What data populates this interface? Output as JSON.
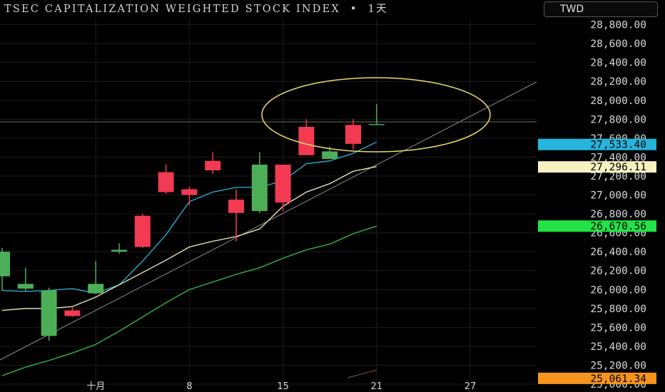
{
  "header": {
    "title": "TSEC CAPITALIZATION WEIGHTED STOCK INDEX",
    "separator": "•",
    "interval": "1天"
  },
  "currency": {
    "label": "TWD"
  },
  "chart_data": {
    "type": "candlestick",
    "title": "TSEC CAPITALIZATION WEIGHTED STOCK INDEX",
    "y_ticks": [
      "25,000.00",
      "25,200.00",
      "25,400.00",
      "25,600.00",
      "25,800.00",
      "26,000.00",
      "26,200.00",
      "26,400.00",
      "26,600.00",
      "26,800.00",
      "27,000.00",
      "27,200.00",
      "27,400.00",
      "27,600.00",
      "27,800.00",
      "28,000.00",
      "28,200.00",
      "28,400.00",
      "28,600.00",
      "28,800.00"
    ],
    "x_ticks": [
      "十月",
      "8",
      "15",
      "21",
      "27"
    ],
    "ylim": [
      24950,
      28950
    ],
    "candles": [
      {
        "o": 26140,
        "h": 26440,
        "l": 25990,
        "c": 26400
      },
      {
        "o": 26010,
        "h": 26230,
        "l": 25980,
        "c": 26060
      },
      {
        "o": 25510,
        "h": 26020,
        "l": 25460,
        "c": 25990
      },
      {
        "o": 25780,
        "h": 25820,
        "l": 25710,
        "c": 25720
      },
      {
        "o": 25960,
        "h": 26300,
        "l": 25960,
        "c": 26060
      },
      {
        "o": 26400,
        "h": 26490,
        "l": 26380,
        "c": 26420
      },
      {
        "o": 26780,
        "h": 26800,
        "l": 26440,
        "c": 26450
      },
      {
        "o": 27240,
        "h": 27320,
        "l": 27010,
        "c": 27030
      },
      {
        "o": 27060,
        "h": 27090,
        "l": 26890,
        "c": 27000
      },
      {
        "o": 27360,
        "h": 27450,
        "l": 27220,
        "c": 27260
      },
      {
        "o": 26950,
        "h": 27060,
        "l": 26510,
        "c": 26810
      },
      {
        "o": 26830,
        "h": 27450,
        "l": 26810,
        "c": 27320
      },
      {
        "o": 27320,
        "h": 27320,
        "l": 26830,
        "c": 26920
      },
      {
        "o": 27720,
        "h": 27800,
        "l": 27420,
        "c": 27420
      },
      {
        "o": 27380,
        "h": 27510,
        "l": 27380,
        "c": 27460
      },
      {
        "o": 27740,
        "h": 27800,
        "l": 27480,
        "c": 27540
      },
      {
        "o": 27750,
        "h": 27960,
        "l": 27750,
        "c": 27750
      }
    ],
    "series": [
      {
        "color": "#29b6d9",
        "values": [
          25990,
          25980,
          25990,
          26010,
          25960,
          26050,
          26300,
          26580,
          26930,
          27030,
          27080,
          27080,
          27150,
          27330,
          27360,
          27440,
          27560
        ]
      },
      {
        "color": "#f5eebe",
        "values": [
          25780,
          25800,
          25800,
          25820,
          25920,
          26050,
          26180,
          26310,
          26450,
          26510,
          26560,
          26640,
          26880,
          27030,
          27120,
          27250,
          27300
        ]
      },
      {
        "color": "#34c24a",
        "values": [
          25090,
          25180,
          25250,
          25330,
          25420,
          25560,
          25710,
          25860,
          26000,
          26080,
          26160,
          26230,
          26330,
          26420,
          26480,
          26590,
          26670
        ]
      }
    ],
    "price_labels": [
      {
        "text": "27,533.40",
        "value": 27533.4,
        "bg": "#26b5dc",
        "fg": "#000000"
      },
      {
        "text": "27,296.11",
        "value": 27296.11,
        "bg": "#f7f0c0",
        "fg": "#000000"
      },
      {
        "text": "26,670.56",
        "value": 26670.56,
        "bg": "#21e346",
        "fg": "#000000"
      },
      {
        "text": "25,061.34",
        "value": 25061.34,
        "bg": "#f7941d",
        "fg": "#000000"
      }
    ],
    "colors": {
      "up": "#4caf58",
      "down": "#f23a52",
      "grid": "#1c1c1c",
      "trendline": "#8c8c8c",
      "ellipse": "#ecd96a"
    }
  }
}
